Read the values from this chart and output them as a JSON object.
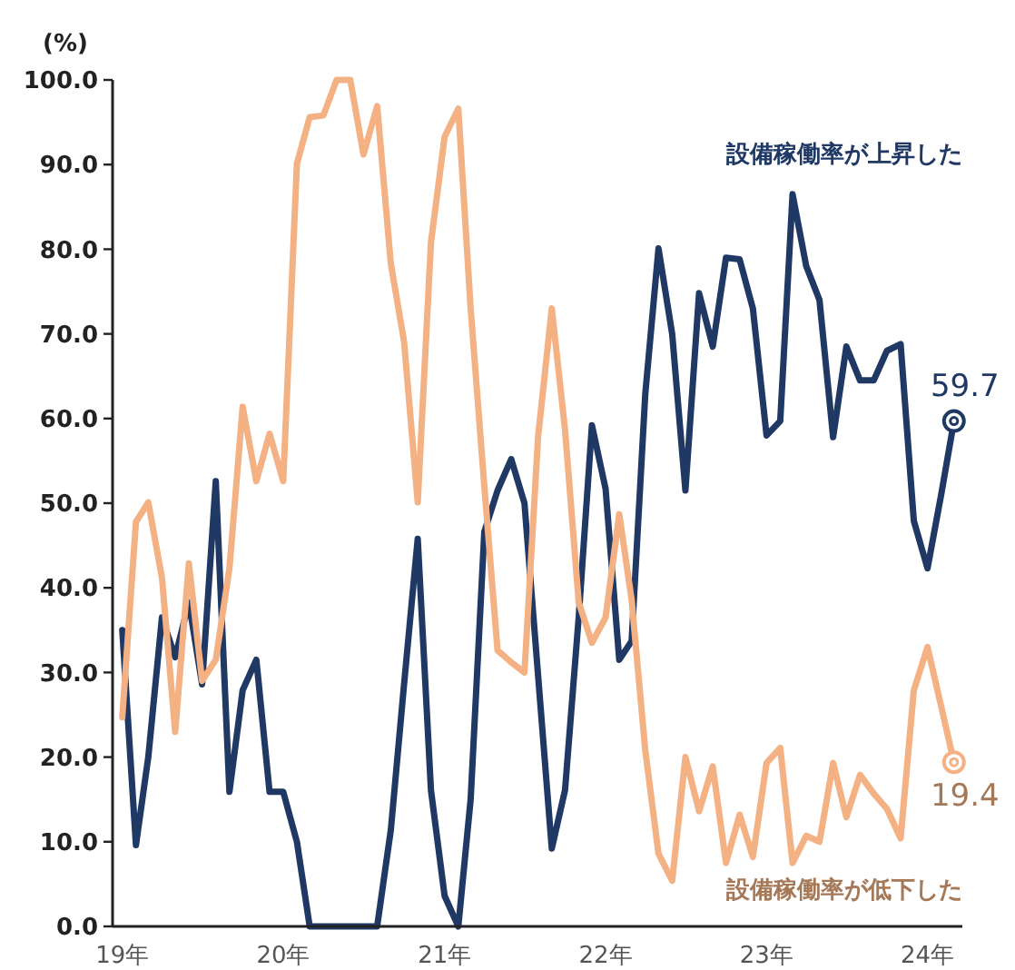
{
  "chart_data": {
    "type": "line",
    "ylabel": "(%)",
    "x": [
      "2019-01",
      "2019-02",
      "2019-03",
      "2019-04",
      "2019-05",
      "2019-06",
      "2019-07",
      "2019-08",
      "2019-09",
      "2019-10",
      "2019-11",
      "2019-12",
      "2020-01",
      "2020-02",
      "2020-03",
      "2020-04",
      "2020-05",
      "2020-06",
      "2020-07",
      "2020-08",
      "2020-09",
      "2020-10",
      "2020-11",
      "2020-12",
      "2021-01",
      "2021-02",
      "2021-03",
      "2021-04",
      "2021-05",
      "2021-06",
      "2021-07",
      "2021-08",
      "2021-09",
      "2021-10",
      "2021-11",
      "2021-12",
      "2022-01",
      "2022-02",
      "2022-03",
      "2022-04",
      "2022-05",
      "2022-06",
      "2022-07",
      "2022-08",
      "2022-09",
      "2022-10",
      "2022-11",
      "2022-12",
      "2023-01",
      "2023-02",
      "2023-03",
      "2023-04",
      "2023-05",
      "2023-06",
      "2023-07",
      "2023-08",
      "2023-09",
      "2023-10",
      "2023-11",
      "2023-12",
      "2024-01",
      "2024-02",
      "2024-03"
    ],
    "series": [
      {
        "name": "設備稼働率が上昇した",
        "color": "#1f3864",
        "values": [
          35.0,
          9.6,
          20.0,
          36.5,
          31.8,
          38.3,
          28.6,
          52.6,
          15.9,
          27.9,
          31.5,
          15.9,
          15.9,
          10.0,
          0,
          0,
          0,
          0,
          0,
          0,
          11.4,
          28.6,
          45.8,
          16.1,
          3.6,
          0,
          15.0,
          46.6,
          51.5,
          55.2,
          50.0,
          29.6,
          9.2,
          16.1,
          36.5,
          59.2,
          51.7,
          31.5,
          33.7,
          62.9,
          80.1,
          70.0,
          51.5,
          74.8,
          68.5,
          79.0,
          78.8,
          73.0,
          58.0,
          59.7,
          86.5,
          78.0,
          74.0,
          57.8,
          68.5,
          64.5,
          64.5,
          68.0,
          68.8,
          47.9,
          42.3,
          51.0,
          59.7
        ]
      },
      {
        "name": "設備稼働率が低下した",
        "color": "#f4b183",
        "values": [
          24.7,
          47.8,
          50.1,
          41.2,
          23.0,
          42.9,
          29.0,
          31.5,
          42.3,
          61.4,
          52.6,
          58.2,
          52.6,
          90.1,
          95.6,
          95.8,
          100,
          100,
          91.2,
          96.9,
          78.3,
          69.1,
          50.1,
          80.8,
          93.3,
          96.6,
          73.0,
          52.0,
          32.6,
          31.2,
          30.0,
          57.9,
          73.0,
          58.7,
          38.3,
          33.5,
          36.5,
          48.7,
          38.6,
          20.8,
          8.6,
          5.4,
          20.0,
          13.6,
          18.9,
          7.5,
          13.2,
          8.2,
          19.3,
          21.1,
          7.5,
          10.7,
          10.0,
          19.3,
          12.9,
          17.9,
          15.7,
          13.9,
          10.4,
          27.9,
          33.0,
          26.0,
          19.4
        ]
      }
    ],
    "xlim": [
      "2018-12-10",
      "2024-03-20"
    ],
    "xticks": [
      {
        "value": "2019-01",
        "label": "19年"
      },
      {
        "value": "2020-01",
        "label": "20年"
      },
      {
        "value": "2021-01",
        "label": "21年"
      },
      {
        "value": "2022-01",
        "label": "22年"
      },
      {
        "value": "2023-01",
        "label": "23年"
      },
      {
        "value": "2024-01",
        "label": "24年"
      }
    ],
    "ylim": [
      0,
      100
    ],
    "yticks": [
      {
        "value": 0,
        "label": "0.0"
      },
      {
        "value": 10,
        "label": "10.0"
      },
      {
        "value": 20,
        "label": "20.0"
      },
      {
        "value": 30,
        "label": "30.0"
      },
      {
        "value": 40,
        "label": "40.0"
      },
      {
        "value": 50,
        "label": "50.0"
      },
      {
        "value": 60,
        "label": "60.0"
      },
      {
        "value": 70,
        "label": "70.0"
      },
      {
        "value": 80,
        "label": "80.0"
      },
      {
        "value": 90,
        "label": "90.0"
      },
      {
        "value": 100,
        "label": "100.0"
      }
    ],
    "annotations": [
      {
        "text": "59.7",
        "x": "2024-03",
        "y": 59.7
      },
      {
        "text": "19.4",
        "x": "2024-03",
        "y": 19.4
      }
    ],
    "grid": false,
    "marker": "none",
    "line_style": "solid"
  }
}
